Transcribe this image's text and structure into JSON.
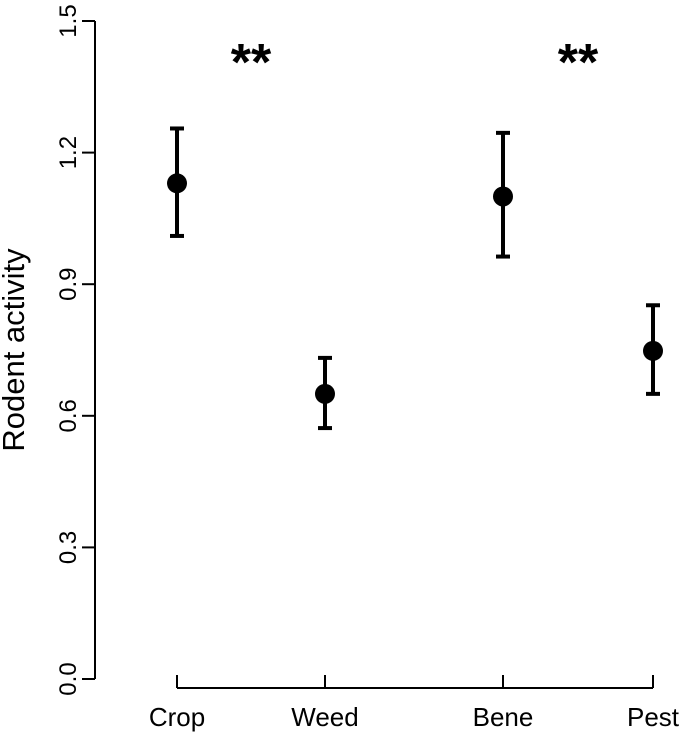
{
  "chart_data": {
    "type": "scatter",
    "title": "",
    "xlabel": "",
    "ylabel": "Rodent activity",
    "ylim": [
      0.0,
      1.5
    ],
    "yticks": [
      "0.0",
      "0.3",
      "0.6",
      "0.9",
      "1.2",
      "1.5"
    ],
    "grid": false,
    "categories": [
      "Crop",
      "Weed",
      "Bene",
      "Pest"
    ],
    "points": [
      {
        "category": "Crop",
        "mean": 1.13,
        "lower": 1.01,
        "upper": 1.255
      },
      {
        "category": "Weed",
        "mean": 0.65,
        "lower": 0.572,
        "upper": 0.732
      },
      {
        "category": "Bene",
        "mean": 1.1,
        "lower": 0.963,
        "upper": 1.245
      },
      {
        "category": "Pest",
        "mean": 0.748,
        "lower": 0.65,
        "upper": 0.852
      }
    ],
    "annotations": [
      {
        "text": "**",
        "between": [
          "Crop",
          "Weed"
        ]
      },
      {
        "text": "**",
        "between": [
          "Bene",
          "Pest"
        ]
      }
    ]
  }
}
